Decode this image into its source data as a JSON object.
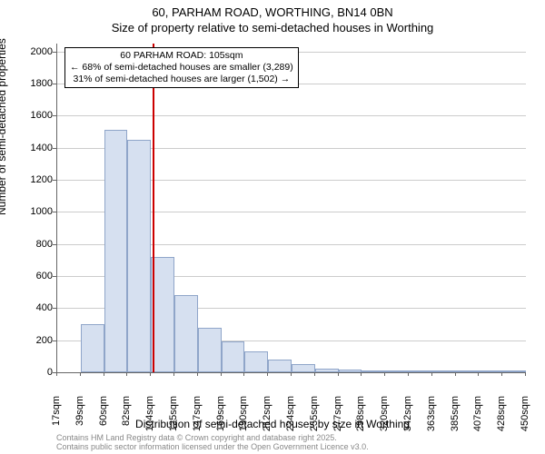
{
  "title_line1": "60, PARHAM ROAD, WORTHING, BN14 0BN",
  "title_line2": "Size of property relative to semi-detached houses in Worthing",
  "y_axis_label": "Number of semi-detached properties",
  "x_axis_label": "Distribution of semi-detached houses by size in Worthing",
  "chart": {
    "type": "histogram",
    "y_min": 0,
    "y_max": 2050,
    "y_ticks": [
      0,
      200,
      400,
      600,
      800,
      1000,
      1200,
      1400,
      1600,
      1800,
      2000
    ],
    "x_tick_labels": [
      "17sqm",
      "39sqm",
      "60sqm",
      "82sqm",
      "104sqm",
      "125sqm",
      "147sqm",
      "169sqm",
      "190sqm",
      "212sqm",
      "234sqm",
      "255sqm",
      "277sqm",
      "298sqm",
      "320sqm",
      "342sqm",
      "363sqm",
      "385sqm",
      "407sqm",
      "428sqm",
      "450sqm"
    ],
    "bar_values": [
      0,
      300,
      1510,
      1450,
      720,
      480,
      280,
      190,
      130,
      80,
      50,
      25,
      18,
      10,
      8,
      5,
      3,
      2,
      2,
      1
    ],
    "bar_fill": "#d6e0f0",
    "bar_border": "#8fa5c9",
    "gridline_color": "#cccccc",
    "background_color": "#ffffff",
    "marker_line_color": "#cc0000",
    "marker_x_value_sqm": 105
  },
  "annotation": {
    "line1": "60 PARHAM ROAD: 105sqm",
    "line2": "← 68% of semi-detached houses are smaller (3,289)",
    "line3": "31% of semi-detached houses are larger (1,502) →"
  },
  "footer_line1": "Contains HM Land Registry data © Crown copyright and database right 2025.",
  "footer_line2": "Contains public sector information licensed under the Open Government Licence v3.0."
}
